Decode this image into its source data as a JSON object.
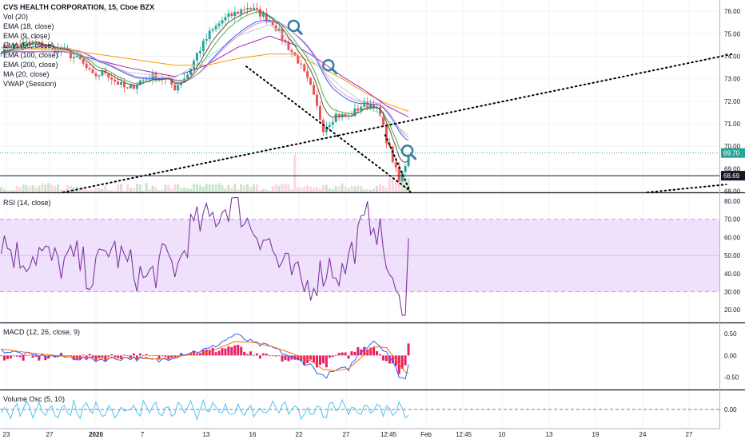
{
  "colors": {
    "price_up": "#26a69a",
    "price_down": "#ef5350",
    "ema18": "#2962ff",
    "ema9": "#4caf50",
    "ema50": "#b2dfdb",
    "ema100": "#9c27b0",
    "ema200": "#ff9800",
    "ma20": "#f48fb1",
    "vwap": "#6d4c41",
    "rsi": "#7e3a9e",
    "rsi_band": "#e9d5fb",
    "macd": "#2962ff",
    "signal": "#ff6d00",
    "hist_pos": "#e91e63",
    "hist_neg": "#e91e63",
    "volosc": "#4fc3f7",
    "trendline": "#000000",
    "last_price_tag": "#26a69a",
    "level_tag": "#131722",
    "search_icon": "#3a7fa0"
  },
  "chart_data": [
    {
      "type": "line",
      "pane": "price",
      "legend": [
        "CVS HEALTH CORPORATION, 15, Cboe BZX",
        "Vol (20)",
        "EMA (18, close)",
        "EMA (9, close)",
        "EMA (50, close)",
        "EMA (100, close)",
        "EMA (200, close)",
        "MA (20, close)",
        "VWAP (Session)"
      ],
      "x_ticks": [
        "23",
        "27",
        "2020",
        "7",
        "13",
        "16",
        "22",
        "27",
        "12:45",
        "Feb",
        "12:45",
        "10",
        "13",
        "19",
        "24",
        "27"
      ],
      "y_ticks": [
        "76.00",
        "75.00",
        "74.00",
        "73.00",
        "72.00",
        "71.00",
        "70.00",
        "69.00",
        "68.00"
      ],
      "ylim": [
        67.95,
        76.5
      ],
      "last_price": "69.70",
      "level_price": "68.69",
      "price_anchors": [
        [
          0,
          74.3
        ],
        [
          5,
          74.5
        ],
        [
          10,
          74.6
        ],
        [
          15,
          74.4
        ],
        [
          20,
          74.2
        ],
        [
          25,
          73.8
        ],
        [
          29,
          73.1
        ],
        [
          33,
          73.3
        ],
        [
          36,
          72.9
        ],
        [
          40,
          72.5
        ],
        [
          44,
          72.9
        ],
        [
          48,
          73.1
        ],
        [
          52,
          73.0
        ],
        [
          55,
          72.6
        ],
        [
          59,
          73.2
        ],
        [
          62,
          74.1
        ],
        [
          66,
          75.0
        ],
        [
          70,
          75.6
        ],
        [
          74,
          75.9
        ],
        [
          78,
          76.2
        ],
        [
          82,
          75.9
        ],
        [
          86,
          75.5
        ],
        [
          90,
          74.6
        ],
        [
          94,
          73.8
        ],
        [
          98,
          72.6
        ],
        [
          102,
          70.8
        ],
        [
          106,
          71.4
        ],
        [
          110,
          71.3
        ],
        [
          114,
          71.8
        ],
        [
          118,
          71.9
        ],
        [
          120,
          71.3
        ],
        [
          122,
          70.3
        ],
        [
          124,
          69.4
        ],
        [
          126,
          68.4
        ],
        [
          128,
          69.2
        ],
        [
          129,
          69.7
        ]
      ],
      "ema50_anchors": [
        [
          0,
          74.35
        ],
        [
          20,
          74.25
        ],
        [
          40,
          73.3
        ],
        [
          55,
          73.05
        ],
        [
          65,
          73.9
        ],
        [
          75,
          74.9
        ],
        [
          85,
          75.4
        ],
        [
          92,
          74.7
        ],
        [
          100,
          73.6
        ],
        [
          108,
          72.6
        ],
        [
          115,
          71.9
        ],
        [
          122,
          71.2
        ],
        [
          129,
          70.5
        ]
      ],
      "ema100_anchors": [
        [
          0,
          74.2
        ],
        [
          20,
          74.2
        ],
        [
          40,
          73.5
        ],
        [
          55,
          73.1
        ],
        [
          65,
          73.6
        ],
        [
          75,
          74.4
        ],
        [
          85,
          74.9
        ],
        [
          93,
          74.5
        ],
        [
          100,
          73.9
        ],
        [
          108,
          73.1
        ],
        [
          115,
          72.5
        ],
        [
          122,
          71.8
        ],
        [
          129,
          71.3
        ]
      ],
      "ema200_anchors": [
        [
          0,
          74.4
        ],
        [
          20,
          74.3
        ],
        [
          40,
          73.9
        ],
        [
          55,
          73.6
        ],
        [
          65,
          73.6
        ],
        [
          75,
          73.9
        ],
        [
          85,
          74.1
        ],
        [
          93,
          74.1
        ],
        [
          100,
          73.6
        ],
        [
          108,
          73.0
        ],
        [
          115,
          72.4
        ],
        [
          122,
          71.9
        ],
        [
          129,
          71.55
        ]
      ],
      "trendlines": [
        {
          "from": [
            20,
            67.95
          ],
          "to": [
            232,
            74.1
          ]
        },
        {
          "from": [
            78,
            73.55
          ],
          "to": [
            130,
            68.0
          ]
        },
        {
          "from": [
            122,
            70.5
          ],
          "to": [
            130,
            67.95
          ]
        },
        {
          "from": [
            205,
            67.95
          ],
          "to": [
            230,
            68.3
          ]
        }
      ],
      "markers": [
        {
          "name": "search-icon",
          "at": [
            93,
            75.35
          ]
        },
        {
          "name": "search-icon",
          "at": [
            104,
            73.6
          ]
        },
        {
          "name": "search-icon",
          "at": [
            129,
            69.8
          ]
        }
      ]
    },
    {
      "type": "line",
      "pane": "rsi",
      "legend": [
        "RSI (14, close)"
      ],
      "y_ticks": [
        "80.00",
        "70.00",
        "60.00",
        "50.00",
        "40.00",
        "30.00",
        "20.00"
      ],
      "ylim": [
        13,
        84
      ],
      "band": [
        30,
        70
      ],
      "anchors": [
        [
          0,
          60
        ],
        [
          6,
          48
        ],
        [
          12,
          52
        ],
        [
          18,
          45
        ],
        [
          24,
          48
        ],
        [
          29,
          38
        ],
        [
          34,
          55
        ],
        [
          40,
          45
        ],
        [
          46,
          36
        ],
        [
          52,
          48
        ],
        [
          56,
          43
        ],
        [
          60,
          65
        ],
        [
          66,
          70
        ],
        [
          70,
          75
        ],
        [
          74,
          82
        ],
        [
          78,
          68
        ],
        [
          84,
          60
        ],
        [
          88,
          45
        ],
        [
          92,
          40
        ],
        [
          96,
          32
        ],
        [
          100,
          38
        ],
        [
          104,
          45
        ],
        [
          108,
          40
        ],
        [
          112,
          56
        ],
        [
          116,
          70
        ],
        [
          118,
          72
        ],
        [
          120,
          60
        ],
        [
          122,
          48
        ],
        [
          124,
          30
        ],
        [
          126,
          22
        ],
        [
          128,
          20
        ],
        [
          129,
          57
        ]
      ]
    },
    {
      "type": "line",
      "pane": "macd",
      "legend": [
        "MACD (12, 26, close, 9)"
      ],
      "y_ticks": [
        "0.50",
        "0.00",
        "-0.50"
      ],
      "ylim": [
        -0.78,
        0.72
      ],
      "macd_anchors": [
        [
          0,
          0.12
        ],
        [
          10,
          0.0
        ],
        [
          20,
          -0.03
        ],
        [
          30,
          -0.1
        ],
        [
          40,
          -0.05
        ],
        [
          50,
          -0.12
        ],
        [
          58,
          0.05
        ],
        [
          66,
          0.15
        ],
        [
          74,
          0.48
        ],
        [
          80,
          0.28
        ],
        [
          86,
          0.18
        ],
        [
          92,
          -0.05
        ],
        [
          98,
          -0.22
        ],
        [
          102,
          -0.5
        ],
        [
          106,
          -0.35
        ],
        [
          110,
          -0.3
        ],
        [
          114,
          0.1
        ],
        [
          118,
          0.35
        ],
        [
          122,
          0.1
        ],
        [
          126,
          -0.45
        ],
        [
          128,
          -0.55
        ],
        [
          129,
          -0.22
        ]
      ],
      "signal_anchors": [
        [
          0,
          0.15
        ],
        [
          10,
          0.05
        ],
        [
          20,
          -0.02
        ],
        [
          30,
          -0.06
        ],
        [
          40,
          -0.05
        ],
        [
          50,
          -0.08
        ],
        [
          58,
          0.0
        ],
        [
          66,
          0.08
        ],
        [
          74,
          0.32
        ],
        [
          80,
          0.3
        ],
        [
          86,
          0.2
        ],
        [
          92,
          0.05
        ],
        [
          98,
          -0.12
        ],
        [
          102,
          -0.32
        ],
        [
          106,
          -0.35
        ],
        [
          110,
          -0.3
        ],
        [
          114,
          -0.05
        ],
        [
          118,
          0.2
        ],
        [
          122,
          0.18
        ],
        [
          126,
          -0.2
        ],
        [
          128,
          -0.38
        ],
        [
          129,
          -0.4
        ]
      ]
    },
    {
      "type": "line",
      "pane": "volosc",
      "legend": [
        "Volume Osc (5, 10)"
      ],
      "y_ticks": [
        "0.00"
      ],
      "ylim": [
        -60,
        60
      ]
    }
  ]
}
